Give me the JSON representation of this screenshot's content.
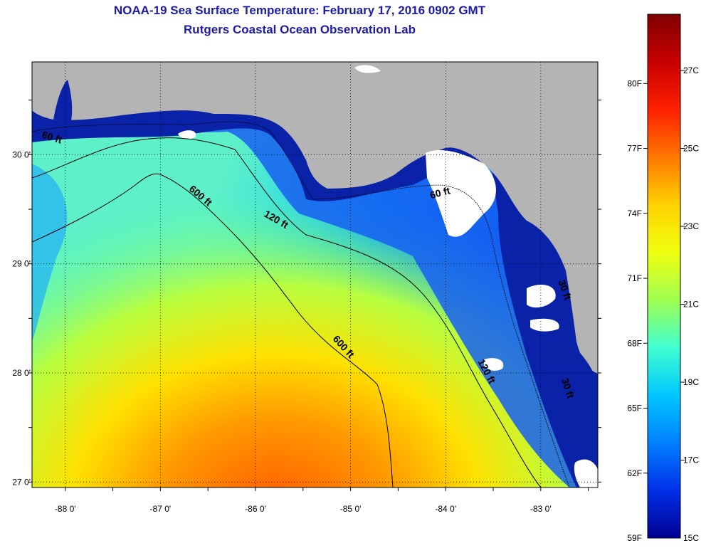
{
  "title": "NOAA-19 Sea Surface Temperature:  February 17, 2016 0902 GMT",
  "subtitle": "Rutgers Coastal Ocean Observation Lab",
  "colors": {
    "land": "#b4b4b4",
    "cloud": "#ffffff",
    "shallow": "#0a22a8",
    "title": "#1c1ca8"
  },
  "map": {
    "lon_range": [
      -88.35,
      -82.4
    ],
    "lat_range": [
      26.95,
      30.85
    ],
    "lon_ticks": [
      {
        "value": -88,
        "label": "-88 0'"
      },
      {
        "value": -87,
        "label": "-87 0'"
      },
      {
        "value": -86,
        "label": "-86 0'"
      },
      {
        "value": -85,
        "label": "-85 0'"
      },
      {
        "value": -84,
        "label": "-84 0'"
      },
      {
        "value": -83,
        "label": "-83 0'"
      }
    ],
    "lat_ticks": [
      {
        "value": 30,
        "label": "30 0'"
      },
      {
        "value": 29,
        "label": "29 0'"
      },
      {
        "value": 28,
        "label": "28 0'"
      },
      {
        "value": 27,
        "label": "27 0'"
      }
    ],
    "contour_labels": [
      {
        "text": "60 ft",
        "lon": -88.15,
        "lat": 30.13,
        "rot": 18
      },
      {
        "text": "600 ft",
        "lon": -86.6,
        "lat": 29.6,
        "rot": 40
      },
      {
        "text": "120 ft",
        "lon": -85.8,
        "lat": 29.38,
        "rot": 30
      },
      {
        "text": "60 ft",
        "lon": -84.05,
        "lat": 29.62,
        "rot": -15
      },
      {
        "text": "600 ft",
        "lon": -85.1,
        "lat": 28.22,
        "rot": 48
      },
      {
        "text": "120 ft",
        "lon": -83.6,
        "lat": 28.0,
        "rot": 62
      },
      {
        "text": "30 ft",
        "lon": -82.75,
        "lat": 27.85,
        "rot": 72
      },
      {
        "text": "30 ft",
        "lon": -82.78,
        "lat": 28.75,
        "rot": 70
      }
    ]
  },
  "colorbar": {
    "stops": [
      "#800000",
      "#c80000",
      "#ff2000",
      "#ff7800",
      "#ffd200",
      "#f0ff10",
      "#a0ff50",
      "#40ffd0",
      "#00c8ff",
      "#0080ff",
      "#0030e8",
      "#000090"
    ],
    "f_ticks": [
      {
        "value": 80,
        "label": "80F"
      },
      {
        "value": 77,
        "label": "77F"
      },
      {
        "value": 74,
        "label": "74F"
      },
      {
        "value": 71,
        "label": "71F"
      },
      {
        "value": 68,
        "label": "68F"
      },
      {
        "value": 65,
        "label": "65F"
      },
      {
        "value": 62,
        "label": "62F"
      },
      {
        "value": 59,
        "label": "59F"
      }
    ],
    "c_ticks": [
      {
        "value": 27,
        "label": "27C"
      },
      {
        "value": 25,
        "label": "25C"
      },
      {
        "value": 23,
        "label": "23C"
      },
      {
        "value": 21,
        "label": "21C"
      },
      {
        "value": 19,
        "label": "19C"
      },
      {
        "value": 17,
        "label": "17C"
      },
      {
        "value": 15,
        "label": "15C"
      }
    ]
  }
}
